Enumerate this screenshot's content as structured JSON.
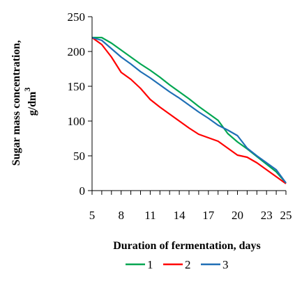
{
  "chart_data": {
    "type": "line",
    "title": "",
    "xlabel": "Duration of fermentation, days",
    "ylabel_line1": "Sugar mass concentration,",
    "ylabel_line2": "g/dm",
    "ylabel_sup": "3",
    "xlim": [
      5,
      25
    ],
    "ylim": [
      0,
      250
    ],
    "x_ticks": [
      5,
      8,
      11,
      14,
      17,
      20,
      23,
      25
    ],
    "y_ticks": [
      0,
      50,
      100,
      150,
      200,
      250
    ],
    "x_minor_step": 1,
    "grid": false,
    "legend_position": "bottom",
    "series": [
      {
        "name": "1",
        "color": "#00a651",
        "x": [
          5,
          6,
          7,
          8,
          9,
          10,
          11,
          12,
          13,
          14,
          15,
          16,
          17,
          18,
          19,
          20,
          21,
          22,
          23,
          24,
          25
        ],
        "values": [
          220,
          220,
          212,
          202,
          192,
          182,
          173,
          163,
          152,
          142,
          132,
          121,
          111,
          101,
          82,
          70,
          60,
          49,
          38,
          27,
          11
        ]
      },
      {
        "name": "2",
        "color": "#ff0000",
        "x": [
          5,
          6,
          7,
          8,
          9,
          10,
          11,
          12,
          13,
          14,
          15,
          16,
          17,
          18,
          19,
          20,
          21,
          22,
          23,
          24,
          25
        ],
        "values": [
          220,
          210,
          192,
          170,
          160,
          147,
          131,
          120,
          110,
          100,
          90,
          81,
          76,
          71,
          61,
          51,
          48,
          40,
          30,
          20,
          10
        ]
      },
      {
        "name": "3",
        "color": "#1f6fb5",
        "x": [
          5,
          6,
          7,
          8,
          9,
          10,
          11,
          12,
          13,
          14,
          15,
          16,
          17,
          18,
          19,
          20,
          21,
          22,
          23,
          24,
          25
        ],
        "values": [
          220,
          216,
          204,
          192,
          182,
          171,
          162,
          152,
          142,
          133,
          123,
          113,
          104,
          94,
          87,
          79,
          61,
          50,
          40,
          30,
          11
        ]
      }
    ]
  }
}
